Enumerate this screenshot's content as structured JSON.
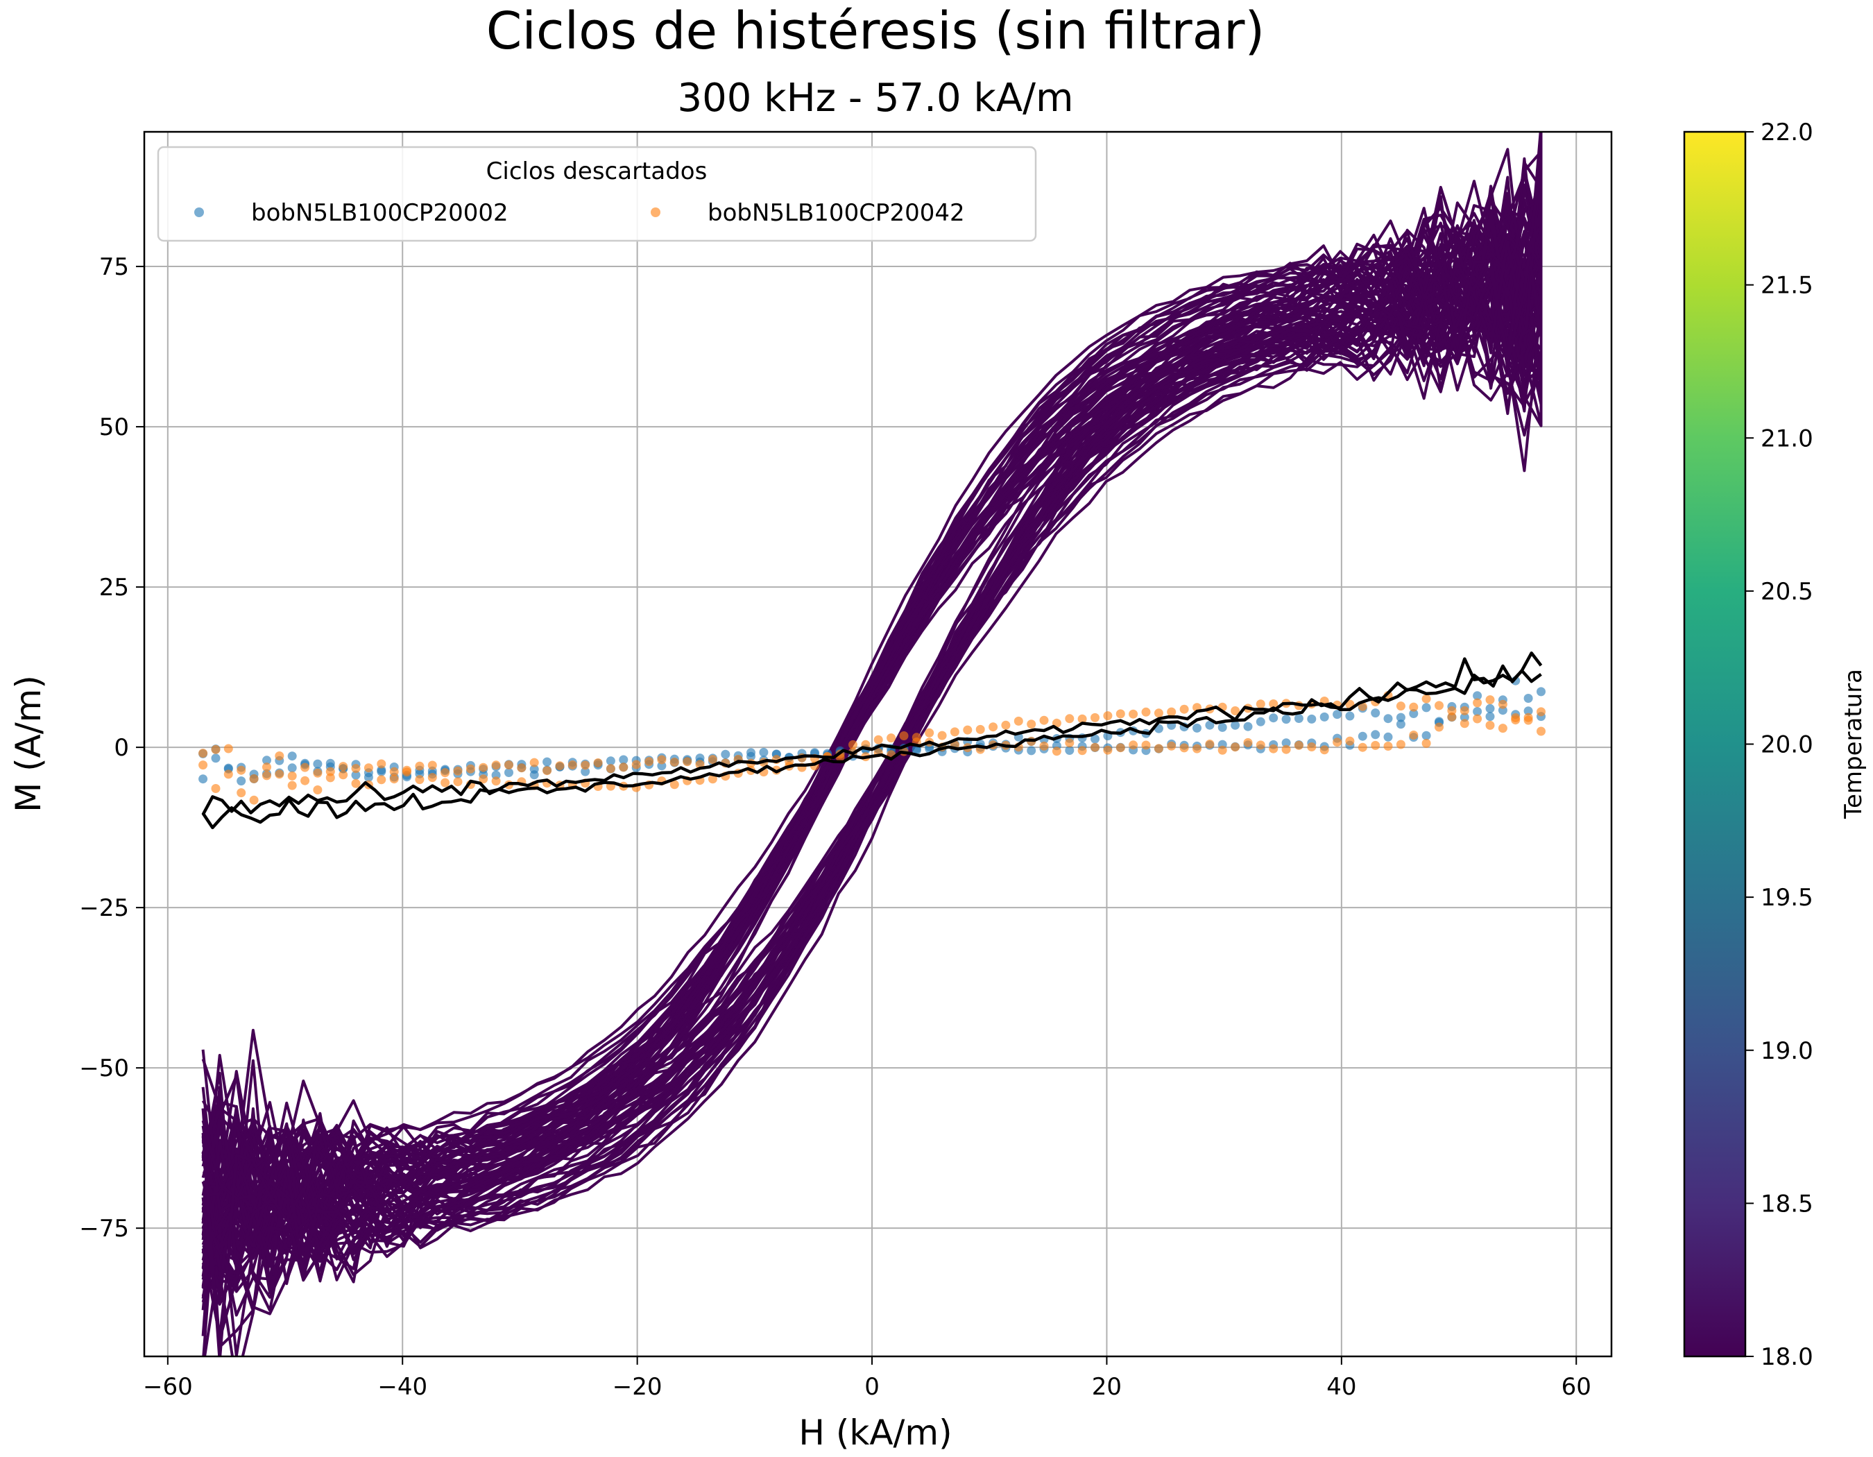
{
  "chart_data": {
    "type": "scatter",
    "title": "Ciclos de histéresis (sin filtrar)",
    "subtitle": "300 kHz - 57.0 kA/m",
    "xlabel": "H (kA/m)",
    "ylabel": "M (A/m)",
    "xlim": [
      -62,
      63
    ],
    "ylim": [
      -95,
      96
    ],
    "xticks": [
      -60,
      -40,
      -20,
      0,
      20,
      40,
      60
    ],
    "xtick_labels": [
      "−60",
      "−40",
      "−20",
      "0",
      "20",
      "40",
      "60"
    ],
    "yticks": [
      -75,
      -50,
      -25,
      0,
      25,
      50,
      75
    ],
    "ytick_labels": [
      "−75",
      "−50",
      "−25",
      "0",
      "25",
      "50",
      "75"
    ],
    "grid": true,
    "legend": {
      "title": "Ciclos descartados",
      "placement": "top-left",
      "entries": [
        {
          "name": "bobN5LB100CP20002",
          "color": "#1f77b4"
        },
        {
          "name": "bobN5LB100CP20042",
          "color": "#ff7f0e"
        }
      ]
    },
    "colorbar": {
      "label": "Temperatura",
      "colormap": "viridis",
      "range": [
        18.0,
        22.0
      ],
      "ticks": [
        18.0,
        18.5,
        19.0,
        19.5,
        20.0,
        20.5,
        21.0,
        21.5,
        22.0
      ],
      "tick_labels": [
        "18.0",
        "18.5",
        "19.0",
        "19.5",
        "20.0",
        "20.5",
        "21.0",
        "21.5",
        "22.0"
      ]
    },
    "hysteresis_cycles": {
      "color": "#440154",
      "count": 40,
      "H_max": 57.0,
      "M_sat": 72,
      "H_coercive": 2.5,
      "noise_at_extremes": 10
    },
    "reference_line": {
      "color": "#000000",
      "points": [
        [
          -57,
          -10
        ],
        [
          -40,
          -8
        ],
        [
          -20,
          -5
        ],
        [
          0,
          -1
        ],
        [
          20,
          3
        ],
        [
          40,
          7
        ],
        [
          57,
          12
        ]
      ]
    },
    "series": [
      {
        "name": "bobN5LB100CP20002",
        "color": "#1f77b4",
        "upper_branch": [
          [
            -57,
            -4
          ],
          [
            -40,
            -4
          ],
          [
            -20,
            -3
          ],
          [
            0,
            -0.5
          ],
          [
            20,
            2
          ],
          [
            40,
            5
          ],
          [
            57,
            7
          ]
        ],
        "lower_branch": [
          [
            57,
            7
          ],
          [
            40,
            0.5
          ],
          [
            20,
            0
          ],
          [
            0,
            -0.5
          ],
          [
            -20,
            -2
          ],
          [
            -40,
            -3.5
          ],
          [
            -57,
            -3
          ]
        ]
      },
      {
        "name": "bobN5LB100CP20042",
        "color": "#ff7f0e",
        "upper_branch": [
          [
            -57,
            -4
          ],
          [
            -40,
            -5
          ],
          [
            -20,
            -6
          ],
          [
            -5,
            -3
          ],
          [
            0,
            1
          ],
          [
            10,
            3
          ],
          [
            20,
            5
          ],
          [
            35,
            7
          ],
          [
            57,
            6
          ]
        ],
        "lower_branch": [
          [
            57,
            6
          ],
          [
            40,
            0
          ],
          [
            20,
            0
          ],
          [
            5,
            0.5
          ],
          [
            0,
            -1
          ],
          [
            -20,
            -2.5
          ],
          [
            -40,
            -3.5
          ],
          [
            -57,
            -4
          ]
        ]
      }
    ]
  }
}
